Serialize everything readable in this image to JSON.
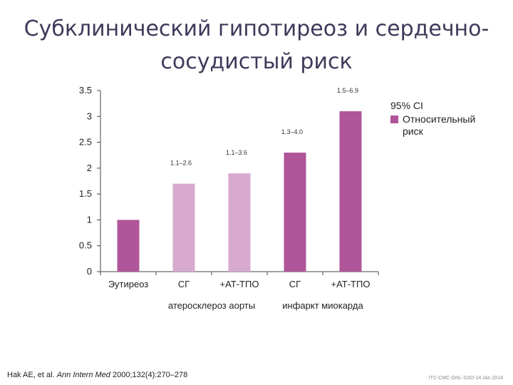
{
  "title": {
    "line1": "Субклинический гипотиреоз и сердечно-",
    "line2": "сосудистый риск"
  },
  "chart_data": {
    "type": "bar",
    "categories": [
      "Эутиреоз",
      "СГ",
      "+АТ-ТПО",
      "СГ",
      "+АТ-ТПО"
    ],
    "groups": [
      {
        "label": "атеросклероз аорты",
        "categories": [
          1,
          2
        ]
      },
      {
        "label": "инфаркт миокарда",
        "categories": [
          3,
          4
        ]
      }
    ],
    "series": [
      {
        "name": "Относительный риск",
        "values": [
          1.0,
          1.7,
          1.9,
          2.3,
          3.1
        ]
      }
    ],
    "bar_colors": [
      "#b0559a",
      "#d8a9cf",
      "#d8a9cf",
      "#b0559a",
      "#b0559a"
    ],
    "data_labels": [
      "",
      "1.1–2.6",
      "1.1–3.6",
      "1.3–4.0",
      "1.5–6.9"
    ],
    "yticks": [
      "0",
      "0.5",
      "1",
      "1.5",
      "2",
      "2.5",
      "3",
      "3.5"
    ],
    "ylim": [
      0,
      3.5
    ],
    "grid": false,
    "legend_position": "right"
  },
  "legend": {
    "ci_label": "95% CI",
    "series_label": "Относительный риск",
    "color": "#b0559a"
  },
  "footer": {
    "authors": "Hak AE, et al. ",
    "journal": "Ann Intern Med",
    "details": " 2000;132(4):270–278"
  },
  "code": "ITC-CMC-GNL-SXO-14.Jan.2014"
}
